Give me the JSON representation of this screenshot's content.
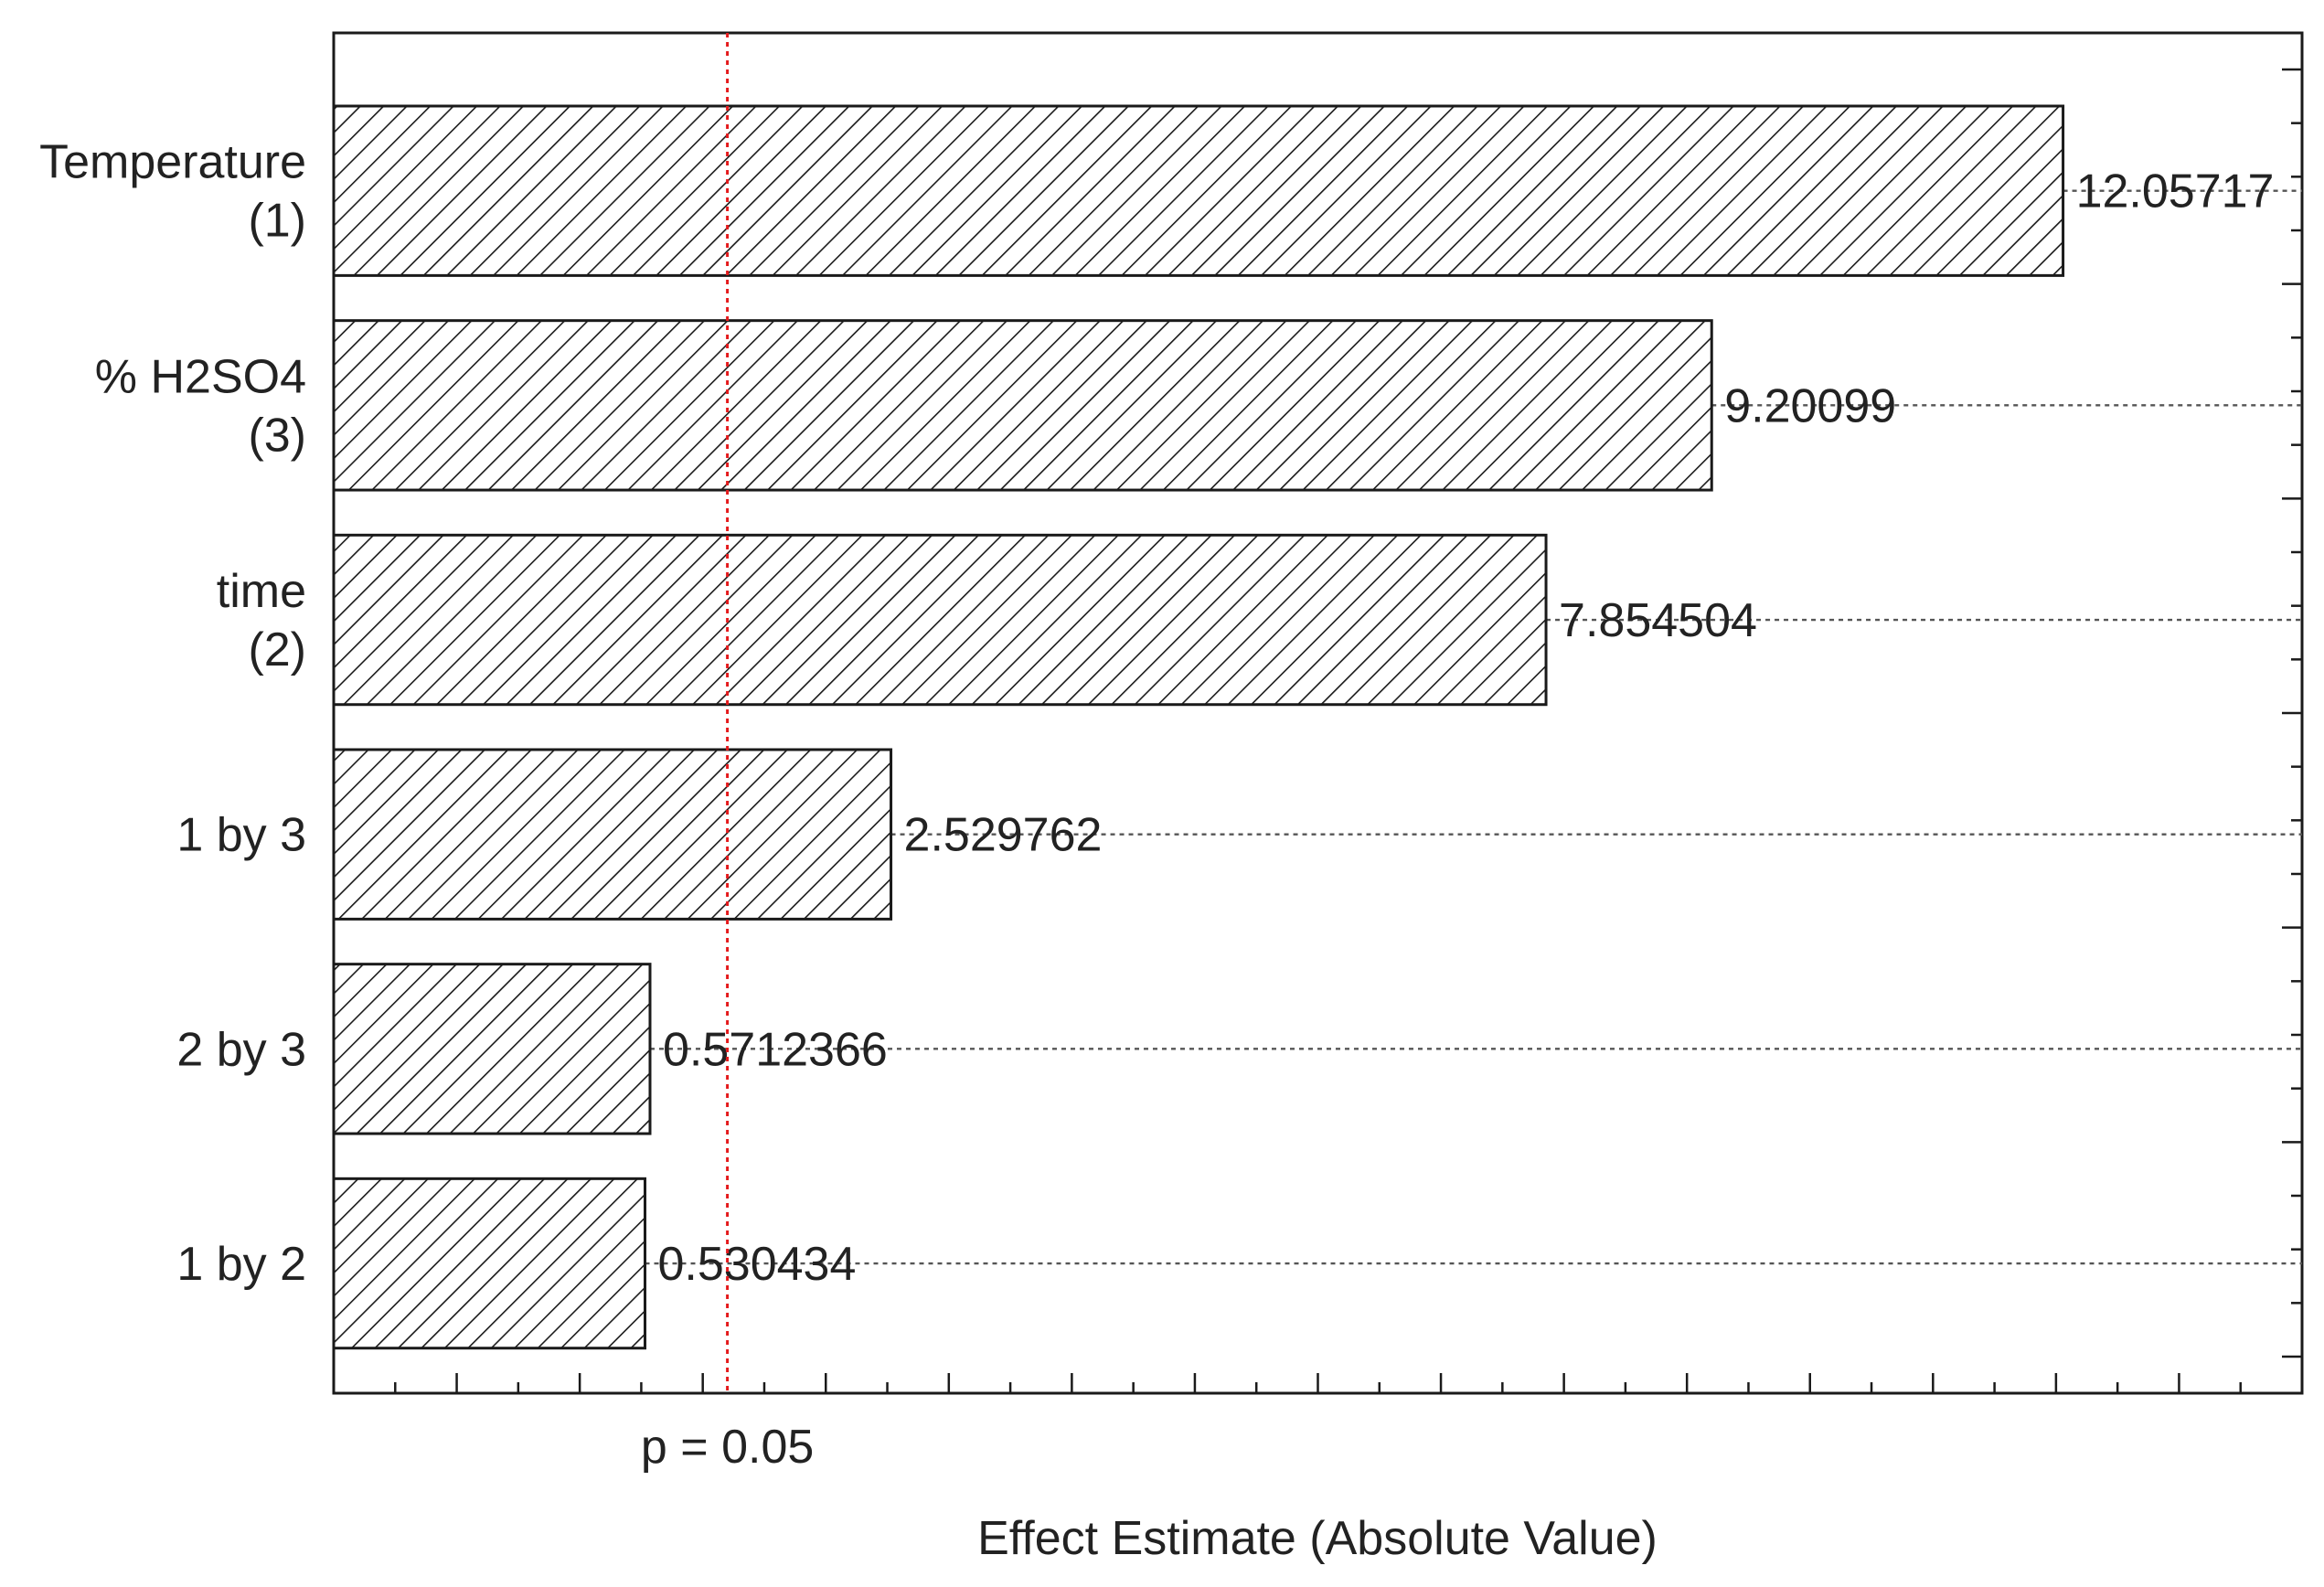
{
  "chart_data": {
    "type": "bar",
    "orientation": "horizontal",
    "title": "",
    "xlabel": "Effect Estimate (Absolute Value)",
    "ylabel": "",
    "categories": [
      {
        "id": "temperature",
        "lines": [
          "Temperature",
          "(1)"
        ]
      },
      {
        "id": "h2so4",
        "lines": [
          "% H2SO4",
          "(3)"
        ]
      },
      {
        "id": "time",
        "lines": [
          "time",
          "(2)"
        ]
      },
      {
        "id": "1by3",
        "lines": [
          "1 by 3"
        ]
      },
      {
        "id": "2by3",
        "lines": [
          "2 by 3"
        ]
      },
      {
        "id": "1by2",
        "lines": [
          "1 by 2"
        ]
      }
    ],
    "values": [
      12.05717,
      9.20099,
      7.854504,
      2.529762,
      0.5712366,
      0.530434
    ],
    "value_labels": [
      "12.05717",
      "9.20099",
      "7.854504",
      "2.529762",
      "0.5712366",
      "0.530434"
    ],
    "xlim": [
      -2,
      14
    ],
    "reference_line": {
      "value": 1.2,
      "label": "p = 0.05",
      "color": "#e41a1c",
      "style": "dotted"
    },
    "bar_fill": "diagonal-hatch",
    "bar_color": "#ffffff",
    "bar_edge_color": "#1a1a1a",
    "grid": false,
    "legend": "none"
  }
}
